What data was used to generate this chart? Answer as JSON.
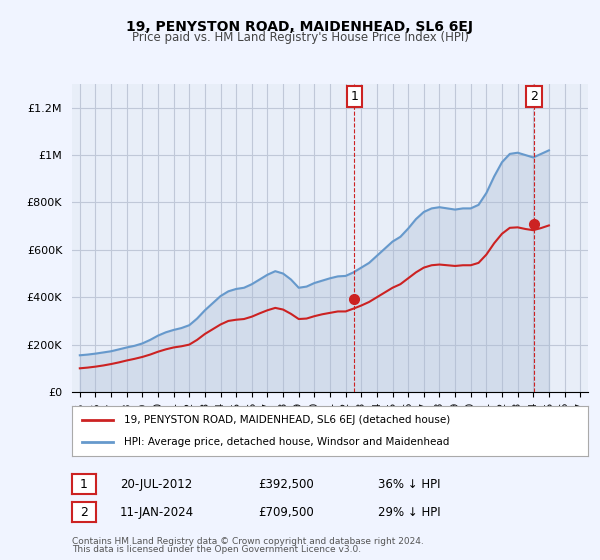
{
  "title": "19, PENYSTON ROAD, MAIDENHEAD, SL6 6EJ",
  "subtitle": "Price paid vs. HM Land Registry's House Price Index (HPI)",
  "ylabel_ticks": [
    "£0",
    "£200K",
    "£400K",
    "£600K",
    "£800K",
    "£1M",
    "£1.2M"
  ],
  "ytick_values": [
    0,
    200000,
    400000,
    600000,
    800000,
    1000000,
    1200000
  ],
  "ylim": [
    0,
    1300000
  ],
  "background_color": "#f0f4ff",
  "plot_bg_color": "#e8eef8",
  "grid_color": "#c0c8d8",
  "hpi_color": "#6699cc",
  "hpi_fill_color": "#aabbd4",
  "price_color": "#cc2222",
  "annotation_color": "#cc2222",
  "legend_label_price": "19, PENYSTON ROAD, MAIDENHEAD, SL6 6EJ (detached house)",
  "legend_label_hpi": "HPI: Average price, detached house, Windsor and Maidenhead",
  "annotation1_label": "1",
  "annotation1_date": "20-JUL-2012",
  "annotation1_price": "£392,500",
  "annotation1_pct": "36% ↓ HPI",
  "annotation2_label": "2",
  "annotation2_date": "11-JAN-2024",
  "annotation2_price": "£709,500",
  "annotation2_pct": "29% ↓ HPI",
  "footnote1": "Contains HM Land Registry data © Crown copyright and database right 2024.",
  "footnote2": "This data is licensed under the Open Government Licence v3.0.",
  "hpi_data": {
    "years": [
      1995,
      1995.5,
      1996,
      1996.5,
      1997,
      1997.5,
      1998,
      1998.5,
      1999,
      1999.5,
      2000,
      2000.5,
      2001,
      2001.5,
      2002,
      2002.5,
      2003,
      2003.5,
      2004,
      2004.5,
      2005,
      2005.5,
      2006,
      2006.5,
      2007,
      2007.5,
      2008,
      2008.5,
      2009,
      2009.5,
      2010,
      2010.5,
      2011,
      2011.5,
      2012,
      2012.5,
      2013,
      2013.5,
      2014,
      2014.5,
      2015,
      2015.5,
      2016,
      2016.5,
      2017,
      2017.5,
      2018,
      2018.5,
      2019,
      2019.5,
      2020,
      2020.5,
      2021,
      2021.5,
      2022,
      2022.5,
      2023,
      2023.5,
      2024,
      2024.5,
      2025
    ],
    "values": [
      155000,
      158000,
      162000,
      167000,
      172000,
      180000,
      188000,
      195000,
      205000,
      220000,
      238000,
      252000,
      262000,
      270000,
      282000,
      310000,
      345000,
      375000,
      405000,
      425000,
      435000,
      440000,
      455000,
      475000,
      495000,
      510000,
      500000,
      475000,
      440000,
      445000,
      460000,
      470000,
      480000,
      488000,
      490000,
      505000,
      525000,
      545000,
      575000,
      605000,
      635000,
      655000,
      690000,
      730000,
      760000,
      775000,
      780000,
      775000,
      770000,
      775000,
      775000,
      790000,
      840000,
      910000,
      970000,
      1005000,
      1010000,
      1000000,
      990000,
      1005000,
      1020000
    ]
  },
  "price_data": {
    "years": [
      1995,
      1995.5,
      1996,
      1996.5,
      1997,
      1997.5,
      1998,
      1998.5,
      1999,
      1999.5,
      2000,
      2000.5,
      2001,
      2001.5,
      2002,
      2002.5,
      2003,
      2003.5,
      2004,
      2004.5,
      2005,
      2005.5,
      2006,
      2006.5,
      2007,
      2007.5,
      2008,
      2008.5,
      2009,
      2009.5,
      2010,
      2010.5,
      2011,
      2011.5,
      2012,
      2012.5,
      2013,
      2013.5,
      2014,
      2014.5,
      2015,
      2015.5,
      2016,
      2016.5,
      2017,
      2017.5,
      2018,
      2018.5,
      2019,
      2019.5,
      2020,
      2020.5,
      2021,
      2021.5,
      2022,
      2022.5,
      2023,
      2023.5,
      2024,
      2024.5,
      2025
    ],
    "values": [
      100000,
      103000,
      107000,
      112000,
      118000,
      125000,
      133000,
      140000,
      148000,
      158000,
      170000,
      180000,
      188000,
      193000,
      200000,
      220000,
      245000,
      265000,
      285000,
      300000,
      305000,
      308000,
      318000,
      332000,
      345000,
      355000,
      348000,
      330000,
      308000,
      310000,
      320000,
      328000,
      334000,
      340000,
      340000,
      352000,
      365000,
      380000,
      400000,
      420000,
      440000,
      455000,
      480000,
      505000,
      525000,
      535000,
      538000,
      535000,
      532000,
      535000,
      535000,
      545000,
      580000,
      628000,
      668000,
      693000,
      695000,
      688000,
      683000,
      692000,
      703000
    ]
  },
  "sale1_year": 2012.55,
  "sale1_price": 392500,
  "sale2_year": 2024.04,
  "sale2_price": 709500,
  "vline1_year": 2012.55,
  "vline2_year": 2024.04,
  "xmin": 1994.5,
  "xmax": 2027.5,
  "xticks": [
    1995,
    1996,
    1997,
    1998,
    1999,
    2000,
    2001,
    2002,
    2003,
    2004,
    2005,
    2006,
    2007,
    2008,
    2009,
    2010,
    2011,
    2012,
    2013,
    2014,
    2015,
    2016,
    2017,
    2018,
    2019,
    2020,
    2021,
    2022,
    2023,
    2024,
    2025,
    2026,
    2027
  ]
}
